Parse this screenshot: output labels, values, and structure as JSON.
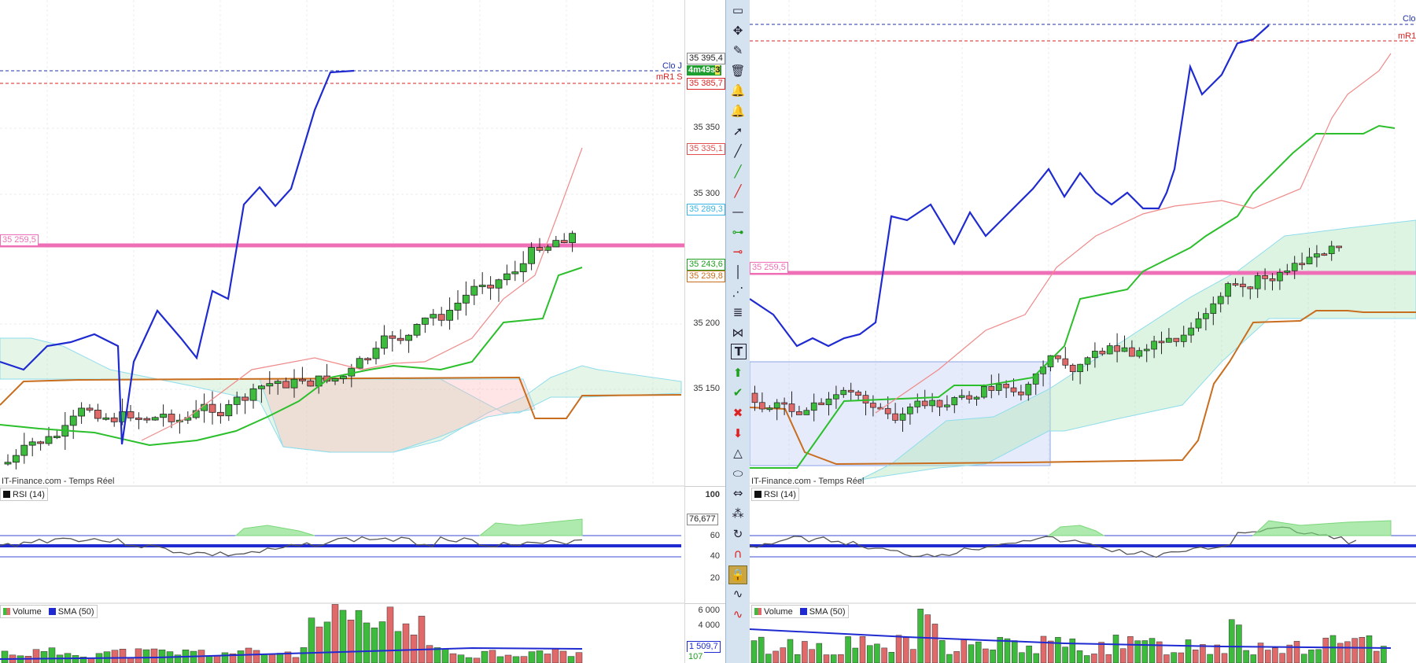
{
  "left_chart": {
    "source": "IT-Finance.com - Temps Réel",
    "price_ticks": [
      "35 350",
      "35 300",
      "35 200",
      "35 150"
    ],
    "tags": {
      "close": "35 395,4",
      "countdown": "4m49s",
      "countdown_suffix": "3",
      "mr1": "35 385,7",
      "tenkan_red": "35 335,1",
      "cyan": "35 289,3",
      "green": "35 243,6",
      "orange": "35 239,8",
      "pink": "35 259,5"
    },
    "labels": {
      "clo": "Clo J",
      "mr1": "mR1 S"
    },
    "rsi": {
      "label": "RSI (14)",
      "ticks": [
        "100",
        "60",
        "40",
        "20"
      ],
      "value": "76,677"
    },
    "volume": {
      "label": "Volume",
      "sma": "SMA (50)",
      "ticks": [
        "6 000",
        "4 000"
      ],
      "sma_value": "1 509,7",
      "value": "107"
    }
  },
  "right_chart": {
    "source": "IT-Finance.com - Temps Réel",
    "tags": {
      "pink": "35 259,5"
    },
    "labels": {
      "clo": "Clo",
      "mr1": "mR1"
    },
    "rsi": {
      "label": "RSI (14)"
    },
    "volume": {
      "label": "Volume",
      "sma": "SMA (50)"
    }
  },
  "toolbar": {
    "tools": [
      "page-icon",
      "move-icon",
      "eraser-icon",
      "trash-icon",
      "alert-bell-icon",
      "alarm-bell-icon",
      "arrow-icon",
      "black-line-icon",
      "green-line-icon",
      "red-line-icon",
      "horizontal-line-icon",
      "green-hline-icon",
      "red-hline-icon",
      "vertical-line-icon",
      "fibonacci-icon",
      "trend-channel-icon",
      "pattern-icon",
      "text-icon",
      "up-arrow-icon",
      "check-icon",
      "cross-icon",
      "down-arrow-icon",
      "triangle-icon",
      "ellipse-icon",
      "measure-icon",
      "scatter-icon",
      "rotate-icon",
      "magnet-icon",
      "lock-icon",
      "wave-icon",
      "wave-red-icon"
    ],
    "glyphs": [
      "▭",
      "✥",
      "✎",
      "🗑",
      "🔔",
      "🔔",
      "➚",
      "╱",
      "╱",
      "╱",
      "—",
      "⊶",
      "⊸",
      "│",
      "⋰",
      "≣",
      "⋈",
      "T",
      "⬆",
      "✔",
      "✖",
      "⬇",
      "△",
      "⬭",
      "⇔",
      "⁂",
      "↻",
      "∩",
      "🔒",
      "∿",
      "∿"
    ]
  },
  "colors": {
    "up": "#3dbb3d",
    "down": "#e06a6a",
    "kijun": "#c96d1e",
    "tenkan": "#2bbf2b",
    "chikou": "#1f2bd1",
    "pink": "#ef6fb7"
  }
}
